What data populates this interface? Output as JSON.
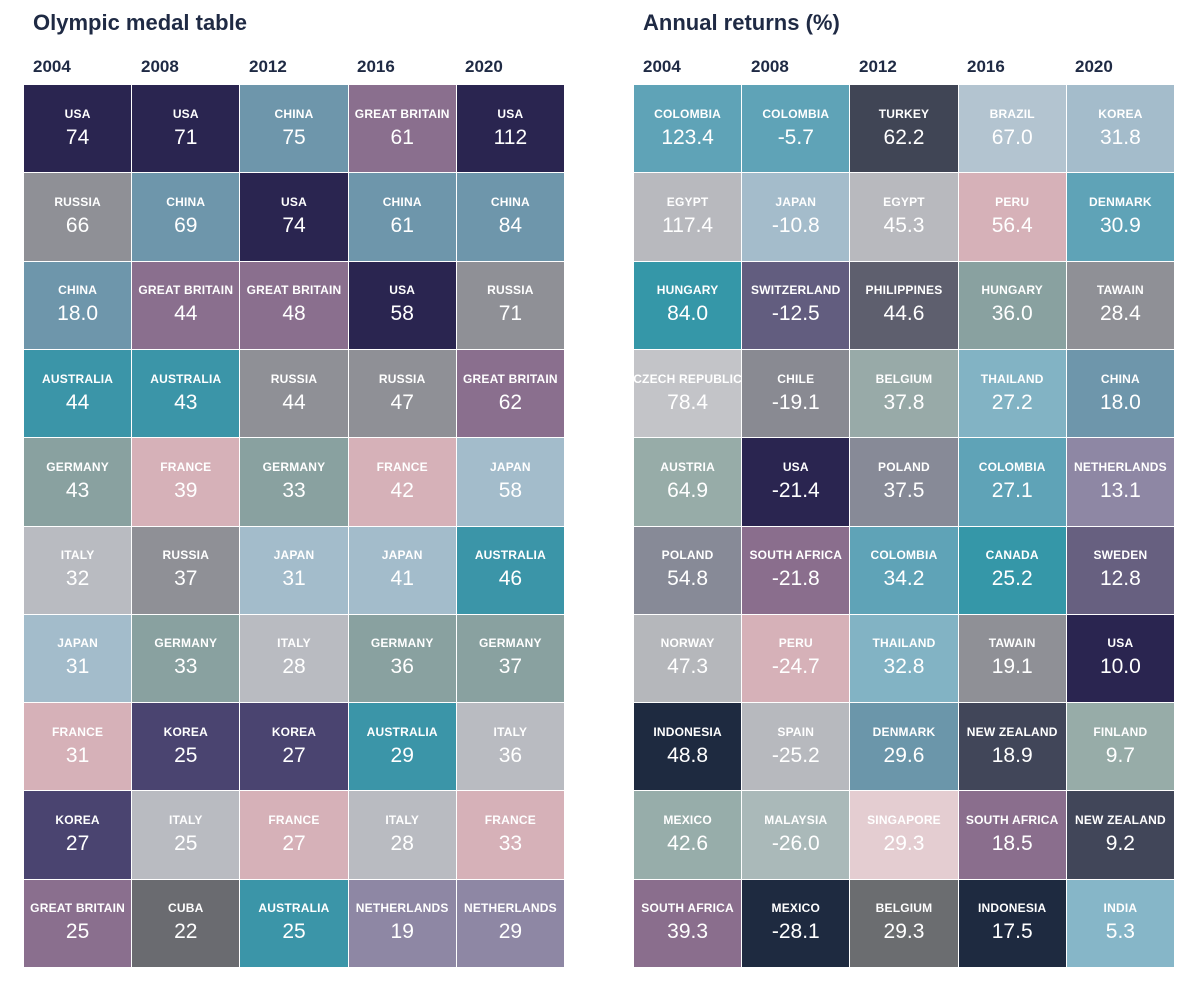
{
  "chart_data": [
    {
      "type": "table",
      "title": "Olympic medal table",
      "columns": [
        "2004",
        "2008",
        "2012",
        "2016",
        "2020"
      ],
      "cells": [
        [
          {
            "label": "USA",
            "value": "74",
            "color": "#2a2550"
          },
          {
            "label": "RUSSIA",
            "value": "66",
            "color": "#8f9096"
          },
          {
            "label": "CHINA",
            "value": "18.0",
            "color": "#6e96ab"
          },
          {
            "label": "AUSTRALIA",
            "value": "44",
            "color": "#3b95a8"
          },
          {
            "label": "GERMANY",
            "value": "43",
            "color": "#89a1a0"
          },
          {
            "label": "ITALY",
            "value": "32",
            "color": "#b9bbc1"
          },
          {
            "label": "JAPAN",
            "value": "31",
            "color": "#a3bccb"
          },
          {
            "label": "FRANCE",
            "value": "31",
            "color": "#d6b1b8"
          },
          {
            "label": "KOREA",
            "value": "27",
            "color": "#4a4470"
          },
          {
            "label": "GREAT BRITAIN",
            "value": "25",
            "color": "#8a6f8e"
          }
        ],
        [
          {
            "label": "USA",
            "value": "71",
            "color": "#2a2550"
          },
          {
            "label": "CHINA",
            "value": "69",
            "color": "#6e96ab"
          },
          {
            "label": "GREAT BRITAIN",
            "value": "44",
            "color": "#8a6f8e"
          },
          {
            "label": "AUSTRALIA",
            "value": "43",
            "color": "#3b95a8"
          },
          {
            "label": "FRANCE",
            "value": "39",
            "color": "#d6b1b8"
          },
          {
            "label": "RUSSIA",
            "value": "37",
            "color": "#8f9096"
          },
          {
            "label": "GERMANY",
            "value": "33",
            "color": "#89a1a0"
          },
          {
            "label": "KOREA",
            "value": "25",
            "color": "#4a4470"
          },
          {
            "label": "ITALY",
            "value": "25",
            "color": "#b9bbc1"
          },
          {
            "label": "CUBA",
            "value": "22",
            "color": "#6a6b70"
          }
        ],
        [
          {
            "label": "CHINA",
            "value": "75",
            "color": "#6e96ab"
          },
          {
            "label": "USA",
            "value": "74",
            "color": "#2a2550"
          },
          {
            "label": "GREAT BRITAIN",
            "value": "48",
            "color": "#8a6f8e"
          },
          {
            "label": "RUSSIA",
            "value": "44",
            "color": "#8f9096"
          },
          {
            "label": "GERMANY",
            "value": "33",
            "color": "#89a1a0"
          },
          {
            "label": "JAPAN",
            "value": "31",
            "color": "#a3bccb"
          },
          {
            "label": "ITALY",
            "value": "28",
            "color": "#b9bbc1"
          },
          {
            "label": "KOREA",
            "value": "27",
            "color": "#4a4470"
          },
          {
            "label": "FRANCE",
            "value": "27",
            "color": "#d6b1b8"
          },
          {
            "label": "AUSTRALIA",
            "value": "25",
            "color": "#3b95a8"
          }
        ],
        [
          {
            "label": "GREAT BRITAIN",
            "value": "61",
            "color": "#8a6f8e"
          },
          {
            "label": "CHINA",
            "value": "61",
            "color": "#6e96ab"
          },
          {
            "label": "USA",
            "value": "58",
            "color": "#2a2550"
          },
          {
            "label": "RUSSIA",
            "value": "47",
            "color": "#8f9096"
          },
          {
            "label": "FRANCE",
            "value": "42",
            "color": "#d6b1b8"
          },
          {
            "label": "JAPAN",
            "value": "41",
            "color": "#a3bccb"
          },
          {
            "label": "GERMANY",
            "value": "36",
            "color": "#89a1a0"
          },
          {
            "label": "AUSTRALIA",
            "value": "29",
            "color": "#3b95a8"
          },
          {
            "label": "ITALY",
            "value": "28",
            "color": "#b9bbc1"
          },
          {
            "label": "NETHERLANDS",
            "value": "19",
            "color": "#8e87a4"
          }
        ],
        [
          {
            "label": "USA",
            "value": "112",
            "color": "#2a2550"
          },
          {
            "label": "CHINA",
            "value": "84",
            "color": "#6e96ab"
          },
          {
            "label": "RUSSIA",
            "value": "71",
            "color": "#8f9096"
          },
          {
            "label": "GREAT BRITAIN",
            "value": "62",
            "color": "#8a6f8e"
          },
          {
            "label": "JAPAN",
            "value": "58",
            "color": "#a3bccb"
          },
          {
            "label": "AUSTRALIA",
            "value": "46",
            "color": "#3b95a8"
          },
          {
            "label": "GERMANY",
            "value": "37",
            "color": "#89a1a0"
          },
          {
            "label": "ITALY",
            "value": "36",
            "color": "#b9bbc1"
          },
          {
            "label": "FRANCE",
            "value": "33",
            "color": "#d6b1b8"
          },
          {
            "label": "NETHERLANDS",
            "value": "29",
            "color": "#8e87a4"
          }
        ]
      ]
    },
    {
      "type": "table",
      "title": "Annual returns (%)",
      "columns": [
        "2004",
        "2008",
        "2012",
        "2016",
        "2020"
      ],
      "cells": [
        [
          {
            "label": "COLOMBIA",
            "value": "123.4",
            "color": "#5fa3b7"
          },
          {
            "label": "EGYPT",
            "value": "117.4",
            "color": "#b8b9be"
          },
          {
            "label": "HUNGARY",
            "value": "84.0",
            "color": "#3597a8"
          },
          {
            "label": "CZECH REPUBLIC",
            "value": "78.4",
            "color": "#c3c4c8"
          },
          {
            "label": "AUSTRIA",
            "value": "64.9",
            "color": "#97aca8"
          },
          {
            "label": "POLAND",
            "value": "54.8",
            "color": "#878a97"
          },
          {
            "label": "NORWAY",
            "value": "47.3",
            "color": "#b5b7bb"
          },
          {
            "label": "INDONESIA",
            "value": "48.8",
            "color": "#1e2a40"
          },
          {
            "label": "MEXICO",
            "value": "42.6",
            "color": "#97adaa"
          },
          {
            "label": "SOUTH AFRICA",
            "value": "39.3",
            "color": "#8a6e8d"
          }
        ],
        [
          {
            "label": "COLOMBIA",
            "value": "-5.7",
            "color": "#5fa3b7"
          },
          {
            "label": "JAPAN",
            "value": "-10.8",
            "color": "#a4bccb"
          },
          {
            "label": "SWITZERLAND",
            "value": "-12.5",
            "color": "#625d7f"
          },
          {
            "label": "CHILE",
            "value": "-19.1",
            "color": "#898a92"
          },
          {
            "label": "USA",
            "value": "-21.4",
            "color": "#2a2550"
          },
          {
            "label": "SOUTH AFRICA",
            "value": "-21.8",
            "color": "#8a6e8d"
          },
          {
            "label": "PERU",
            "value": "-24.7",
            "color": "#d6b1b8"
          },
          {
            "label": "SPAIN",
            "value": "-25.2",
            "color": "#b7b9be"
          },
          {
            "label": "MALAYSIA",
            "value": "-26.0",
            "color": "#aab9b9"
          },
          {
            "label": "MEXICO",
            "value": "-28.1",
            "color": "#1e2a40"
          }
        ],
        [
          {
            "label": "TURKEY",
            "value": "62.2",
            "color": "#404555"
          },
          {
            "label": "EGYPT",
            "value": "45.3",
            "color": "#b8b9be"
          },
          {
            "label": "PHILIPPINES",
            "value": "44.6",
            "color": "#5e5f6e"
          },
          {
            "label": "BELGIUM",
            "value": "37.8",
            "color": "#98aaa8"
          },
          {
            "label": "POLAND",
            "value": "37.5",
            "color": "#878a97"
          },
          {
            "label": "COLOMBIA",
            "value": "34.2",
            "color": "#5fa3b7"
          },
          {
            "label": "THAILAND",
            "value": "32.8",
            "color": "#82b3c4"
          },
          {
            "label": "DENMARK",
            "value": "29.6",
            "color": "#6b96aa"
          },
          {
            "label": "SINGAPORE",
            "value": "29.3",
            "color": "#e4cdd1"
          },
          {
            "label": "BELGIUM",
            "value": "29.3",
            "color": "#6b6d70"
          }
        ],
        [
          {
            "label": "BRAZIL",
            "value": "67.0",
            "color": "#b3c4d0"
          },
          {
            "label": "PERU",
            "value": "56.4",
            "color": "#d6b1b8"
          },
          {
            "label": "HUNGARY",
            "value": "36.0",
            "color": "#89a1a0"
          },
          {
            "label": "THAILAND",
            "value": "27.2",
            "color": "#82b3c4"
          },
          {
            "label": "COLOMBIA",
            "value": "27.1",
            "color": "#5fa3b7"
          },
          {
            "label": "CANADA",
            "value": "25.2",
            "color": "#3597a8"
          },
          {
            "label": "TAWAIN",
            "value": "19.1",
            "color": "#8f9096"
          },
          {
            "label": "NEW ZEALAND",
            "value": "18.9",
            "color": "#414659"
          },
          {
            "label": "SOUTH AFRICA",
            "value": "18.5",
            "color": "#8a6e8d"
          },
          {
            "label": "INDONESIA",
            "value": "17.5",
            "color": "#1e2a40"
          }
        ],
        [
          {
            "label": "KOREA",
            "value": "31.8",
            "color": "#a4bccb"
          },
          {
            "label": "DENMARK",
            "value": "30.9",
            "color": "#5fa3b7"
          },
          {
            "label": "TAWAIN",
            "value": "28.4",
            "color": "#8f9096"
          },
          {
            "label": "CHINA",
            "value": "18.0",
            "color": "#6e96ab"
          },
          {
            "label": "NETHERLANDS",
            "value": "13.1",
            "color": "#8e87a4"
          },
          {
            "label": "SWEDEN",
            "value": "12.8",
            "color": "#676080"
          },
          {
            "label": "USA",
            "value": "10.0",
            "color": "#2a2550"
          },
          {
            "label": "FINLAND",
            "value": "9.7",
            "color": "#97aca8"
          },
          {
            "label": "NEW ZEALAND",
            "value": "9.2",
            "color": "#414659"
          },
          {
            "label": "INDIA",
            "value": "5.3",
            "color": "#86b6c8"
          }
        ]
      ]
    }
  ]
}
